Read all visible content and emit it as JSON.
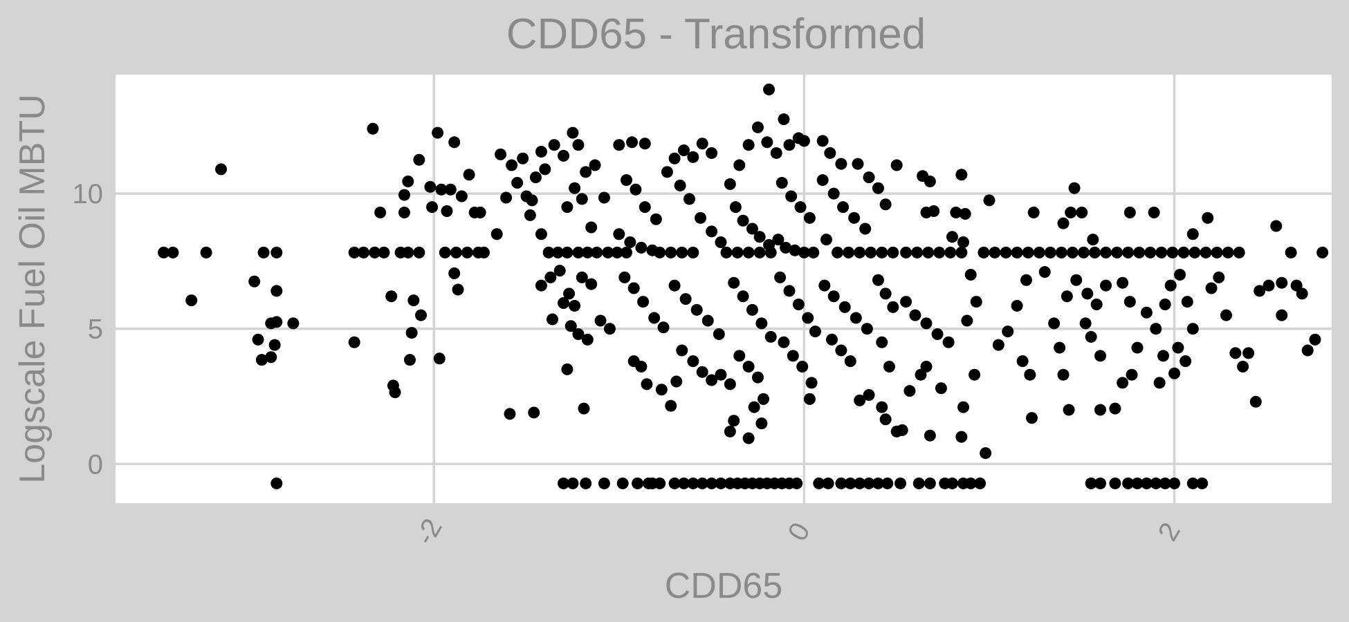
{
  "chart_data": {
    "type": "scatter",
    "title": "CDD65 - Transformed",
    "xlabel": "CDD65",
    "ylabel": "Logscale Fuel Oil MBTU",
    "xlim": [
      -3.72,
      2.85
    ],
    "ylim": [
      -1.45,
      14.4
    ],
    "xticks": [
      -2,
      0,
      2
    ],
    "xtick_labels": [
      "-2",
      "0",
      "2"
    ],
    "yticks": [
      0,
      5,
      10
    ],
    "ytick_labels": [
      "0",
      "5",
      "10"
    ],
    "grid": true,
    "point_color": "#000000",
    "panel_background": "#ffffff",
    "figure_background": "#d4d4d4",
    "points": [
      [
        -3.46,
        7.82
      ],
      [
        -3.41,
        7.82
      ],
      [
        -3.31,
        6.05
      ],
      [
        -3.23,
        7.82
      ],
      [
        -3.15,
        10.9
      ],
      [
        -2.97,
        6.75
      ],
      [
        -2.95,
        4.6
      ],
      [
        -2.92,
        7.82
      ],
      [
        -2.85,
        7.82
      ],
      [
        -2.93,
        3.85
      ],
      [
        -2.88,
        5.2
      ],
      [
        -2.85,
        5.25
      ],
      [
        -2.86,
        4.4
      ],
      [
        -2.88,
        3.95
      ],
      [
        -2.85,
        6.4
      ],
      [
        -2.76,
        5.2
      ],
      [
        -2.85,
        -0.72
      ],
      [
        -2.43,
        7.82
      ],
      [
        -2.38,
        7.82
      ],
      [
        -2.32,
        7.82
      ],
      [
        -2.27,
        7.82
      ],
      [
        -2.43,
        4.5
      ],
      [
        -2.33,
        12.4
      ],
      [
        -2.29,
        9.3
      ],
      [
        -2.23,
        6.2
      ],
      [
        -2.18,
        7.82
      ],
      [
        -2.14,
        7.82
      ],
      [
        -2.08,
        7.82
      ],
      [
        -2.22,
        2.9
      ],
      [
        -2.21,
        2.65
      ],
      [
        -2.16,
        9.95
      ],
      [
        -2.14,
        10.45
      ],
      [
        -2.11,
        6.05
      ],
      [
        -2.12,
        4.85
      ],
      [
        -2.13,
        3.85
      ],
      [
        -2.16,
        9.3
      ],
      [
        -2.08,
        11.25
      ],
      [
        -2.02,
        10.25
      ],
      [
        -2.01,
        9.5
      ],
      [
        -1.98,
        12.25
      ],
      [
        -1.96,
        10.15
      ],
      [
        -1.93,
        9.35
      ],
      [
        -1.91,
        10.15
      ],
      [
        -1.89,
        11.9
      ],
      [
        -1.94,
        7.82
      ],
      [
        -1.88,
        7.82
      ],
      [
        -1.82,
        7.82
      ],
      [
        -1.76,
        7.82
      ],
      [
        -1.85,
        9.9
      ],
      [
        -1.89,
        7.05
      ],
      [
        -1.87,
        6.45
      ],
      [
        -1.97,
        3.9
      ],
      [
        -2.07,
        5.5
      ],
      [
        -1.81,
        10.7
      ],
      [
        -1.78,
        9.3
      ],
      [
        -1.75,
        9.3
      ],
      [
        -1.73,
        7.82
      ],
      [
        -1.66,
        8.5
      ],
      [
        -1.61,
        9.85
      ],
      [
        -1.64,
        11.45
      ],
      [
        -1.58,
        11.05
      ],
      [
        -1.55,
        10.4
      ],
      [
        -1.5,
        9.9
      ],
      [
        -1.48,
        9.2
      ],
      [
        -1.52,
        11.3
      ],
      [
        -1.45,
        10.6
      ],
      [
        -1.42,
        11.55
      ],
      [
        -1.47,
        9.75
      ],
      [
        -1.4,
        10.9
      ],
      [
        -1.35,
        11.8
      ],
      [
        -1.3,
        11.4
      ],
      [
        -1.25,
        12.25
      ],
      [
        -1.22,
        11.8
      ],
      [
        -1.18,
        10.8
      ],
      [
        -1.13,
        11.05
      ],
      [
        -1.28,
        9.5
      ],
      [
        -1.24,
        10.2
      ],
      [
        -1.2,
        9.8
      ],
      [
        -1.15,
        8.75
      ],
      [
        -1.08,
        9.85
      ],
      [
        -1.42,
        8.5
      ],
      [
        -1.38,
        7.82
      ],
      [
        -1.33,
        7.82
      ],
      [
        -1.28,
        7.82
      ],
      [
        -1.22,
        7.82
      ],
      [
        -1.17,
        7.82
      ],
      [
        -1.12,
        7.82
      ],
      [
        -1.06,
        7.82
      ],
      [
        -1.01,
        7.82
      ],
      [
        -0.96,
        7.82
      ],
      [
        -1.42,
        6.6
      ],
      [
        -1.37,
        6.9
      ],
      [
        -1.32,
        7.15
      ],
      [
        -1.27,
        6.3
      ],
      [
        -1.24,
        5.85
      ],
      [
        -1.2,
        6.9
      ],
      [
        -1.15,
        6.65
      ],
      [
        -1.1,
        5.3
      ],
      [
        -1.05,
        5.0
      ],
      [
        -1.36,
        5.35
      ],
      [
        -1.3,
        5.95
      ],
      [
        -1.26,
        5.1
      ],
      [
        -1.22,
        4.8
      ],
      [
        -1.17,
        4.6
      ],
      [
        -1.28,
        3.5
      ],
      [
        -1.19,
        2.05
      ],
      [
        -1.59,
        1.85
      ],
      [
        -1.46,
        1.9
      ],
      [
        -1.0,
        11.8
      ],
      [
        -0.93,
        11.9
      ],
      [
        -0.86,
        11.85
      ],
      [
        -0.96,
        10.5
      ],
      [
        -0.91,
        10.15
      ],
      [
        -0.86,
        9.5
      ],
      [
        -0.8,
        9.05
      ],
      [
        -1.0,
        8.5
      ],
      [
        -0.94,
        8.2
      ],
      [
        -0.88,
        8.0
      ],
      [
        -0.82,
        7.9
      ],
      [
        -0.78,
        7.82
      ],
      [
        -0.72,
        7.82
      ],
      [
        -0.66,
        7.82
      ],
      [
        -0.6,
        7.82
      ],
      [
        -0.97,
        6.9
      ],
      [
        -0.92,
        6.5
      ],
      [
        -0.87,
        6.0
      ],
      [
        -0.81,
        5.4
      ],
      [
        -0.76,
        5.05
      ],
      [
        -0.92,
        3.8
      ],
      [
        -0.88,
        3.6
      ],
      [
        -0.85,
        2.95
      ],
      [
        -0.77,
        2.75
      ],
      [
        -0.72,
        2.15
      ],
      [
        -0.69,
        3.05
      ],
      [
        -0.74,
        10.8
      ],
      [
        -0.7,
        11.3
      ],
      [
        -0.65,
        11.6
      ],
      [
        -0.6,
        11.35
      ],
      [
        -0.55,
        11.85
      ],
      [
        -0.5,
        11.5
      ],
      [
        -0.67,
        10.3
      ],
      [
        -0.62,
        9.8
      ],
      [
        -0.56,
        9.1
      ],
      [
        -0.5,
        8.6
      ],
      [
        -0.45,
        8.2
      ],
      [
        -0.7,
        6.6
      ],
      [
        -0.64,
        6.1
      ],
      [
        -0.58,
        5.7
      ],
      [
        -0.52,
        5.3
      ],
      [
        -0.46,
        4.8
      ],
      [
        -0.66,
        4.2
      ],
      [
        -0.6,
        3.8
      ],
      [
        -0.55,
        3.4
      ],
      [
        -0.5,
        3.1
      ],
      [
        -0.45,
        3.3
      ],
      [
        -0.4,
        10.35
      ],
      [
        -0.35,
        11.05
      ],
      [
        -0.3,
        11.8
      ],
      [
        -0.25,
        12.45
      ],
      [
        -0.2,
        11.9
      ],
      [
        -0.37,
        9.5
      ],
      [
        -0.33,
        9.0
      ],
      [
        -0.28,
        8.7
      ],
      [
        -0.24,
        8.4
      ],
      [
        -0.19,
        8.1
      ],
      [
        -0.42,
        7.82
      ],
      [
        -0.36,
        7.82
      ],
      [
        -0.3,
        7.82
      ],
      [
        -0.24,
        7.82
      ],
      [
        -0.18,
        7.82
      ],
      [
        -0.38,
        6.7
      ],
      [
        -0.33,
        6.2
      ],
      [
        -0.28,
        5.7
      ],
      [
        -0.23,
        5.2
      ],
      [
        -0.18,
        4.7
      ],
      [
        -0.35,
        4.0
      ],
      [
        -0.3,
        3.6
      ],
      [
        -0.25,
        3.2
      ],
      [
        -0.4,
        2.95
      ],
      [
        -0.38,
        1.6
      ],
      [
        -0.4,
        1.2
      ],
      [
        -0.3,
        0.95
      ],
      [
        -0.23,
        1.5
      ],
      [
        -0.27,
        2.1
      ],
      [
        -0.22,
        2.4
      ],
      [
        -0.19,
        13.85
      ],
      [
        -0.11,
        12.75
      ],
      [
        -0.15,
        11.5
      ],
      [
        -0.08,
        11.8
      ],
      [
        -0.03,
        12.05
      ],
      [
        0.0,
        11.95
      ],
      [
        -0.12,
        10.4
      ],
      [
        -0.07,
        9.9
      ],
      [
        -0.02,
        9.5
      ],
      [
        0.03,
        9.1
      ],
      [
        -0.14,
        8.3
      ],
      [
        -0.1,
        8.0
      ],
      [
        -0.05,
        7.9
      ],
      [
        0.0,
        7.82
      ],
      [
        0.05,
        7.82
      ],
      [
        -0.13,
        6.9
      ],
      [
        -0.08,
        6.4
      ],
      [
        -0.03,
        5.9
      ],
      [
        0.02,
        5.4
      ],
      [
        0.06,
        4.9
      ],
      [
        -0.11,
        4.5
      ],
      [
        -0.06,
        4.0
      ],
      [
        -0.01,
        3.6
      ],
      [
        0.04,
        3.0
      ],
      [
        0.03,
        2.4
      ],
      [
        0.1,
        11.95
      ],
      [
        0.14,
        11.5
      ],
      [
        0.2,
        11.1
      ],
      [
        0.1,
        10.5
      ],
      [
        0.16,
        10.0
      ],
      [
        0.21,
        9.5
      ],
      [
        0.27,
        9.1
      ],
      [
        0.33,
        8.7
      ],
      [
        0.12,
        8.3
      ],
      [
        0.18,
        7.82
      ],
      [
        0.24,
        7.82
      ],
      [
        0.3,
        7.82
      ],
      [
        0.36,
        7.82
      ],
      [
        0.42,
        7.82
      ],
      [
        0.48,
        7.82
      ],
      [
        0.11,
        6.6
      ],
      [
        0.16,
        6.2
      ],
      [
        0.22,
        5.8
      ],
      [
        0.28,
        5.4
      ],
      [
        0.34,
        5.0
      ],
      [
        0.15,
        4.6
      ],
      [
        0.2,
        4.2
      ],
      [
        0.25,
        3.8
      ],
      [
        0.3,
        2.35
      ],
      [
        0.35,
        2.55
      ],
      [
        0.29,
        11.1
      ],
      [
        0.35,
        10.6
      ],
      [
        0.4,
        10.2
      ],
      [
        0.44,
        9.6
      ],
      [
        0.5,
        11.05
      ],
      [
        0.4,
        6.8
      ],
      [
        0.44,
        6.3
      ],
      [
        0.48,
        5.8
      ],
      [
        0.42,
        4.5
      ],
      [
        0.46,
        3.6
      ],
      [
        0.42,
        2.1
      ],
      [
        0.44,
        1.65
      ],
      [
        0.5,
        1.2
      ],
      [
        0.53,
        1.25
      ],
      [
        0.55,
        7.82
      ],
      [
        0.61,
        7.82
      ],
      [
        0.67,
        7.82
      ],
      [
        0.73,
        7.82
      ],
      [
        0.79,
        7.82
      ],
      [
        0.85,
        7.82
      ],
      [
        0.55,
        6.0
      ],
      [
        0.6,
        5.5
      ],
      [
        0.66,
        5.2
      ],
      [
        0.72,
        4.8
      ],
      [
        0.78,
        4.5
      ],
      [
        0.57,
        2.7
      ],
      [
        0.63,
        3.3
      ],
      [
        0.66,
        3.6
      ],
      [
        0.68,
        1.05
      ],
      [
        0.74,
        2.8
      ],
      [
        0.64,
        10.65
      ],
      [
        0.68,
        10.45
      ],
      [
        0.66,
        9.3
      ],
      [
        0.7,
        9.35
      ],
      [
        0.85,
        10.7
      ],
      [
        0.82,
        9.3
      ],
      [
        0.87,
        9.25
      ],
      [
        0.8,
        8.4
      ],
      [
        0.86,
        8.2
      ],
      [
        0.9,
        7.0
      ],
      [
        0.93,
        6.0
      ],
      [
        0.88,
        5.3
      ],
      [
        0.92,
        3.3
      ],
      [
        0.86,
        2.1
      ],
      [
        0.85,
        1.0
      ],
      [
        0.98,
        0.4
      ],
      [
        1.0,
        9.75
      ],
      [
        0.97,
        7.82
      ],
      [
        1.03,
        7.82
      ],
      [
        1.09,
        7.82
      ],
      [
        1.15,
        7.82
      ],
      [
        1.21,
        7.82
      ],
      [
        1.27,
        7.82
      ],
      [
        1.05,
        4.4
      ],
      [
        1.1,
        4.9
      ],
      [
        1.15,
        5.85
      ],
      [
        1.2,
        6.8
      ],
      [
        1.18,
        3.8
      ],
      [
        1.22,
        3.3
      ],
      [
        1.23,
        1.7
      ],
      [
        1.24,
        9.3
      ],
      [
        1.3,
        7.1
      ],
      [
        1.35,
        5.2
      ],
      [
        1.38,
        4.3
      ],
      [
        1.33,
        7.82
      ],
      [
        1.39,
        7.82
      ],
      [
        1.45,
        7.82
      ],
      [
        1.51,
        7.82
      ],
      [
        1.57,
        7.82
      ],
      [
        1.63,
        7.82
      ],
      [
        1.4,
        8.9
      ],
      [
        1.44,
        9.3
      ],
      [
        1.5,
        9.3
      ],
      [
        1.46,
        10.2
      ],
      [
        1.42,
        6.2
      ],
      [
        1.47,
        6.8
      ],
      [
        1.52,
        5.2
      ],
      [
        1.55,
        4.7
      ],
      [
        1.6,
        4.0
      ],
      [
        1.4,
        3.3
      ],
      [
        1.43,
        2.0
      ],
      [
        1.53,
        6.3
      ],
      [
        1.58,
        5.9
      ],
      [
        1.63,
        6.6
      ],
      [
        1.56,
        8.3
      ],
      [
        1.6,
        2.0
      ],
      [
        1.68,
        2.05
      ],
      [
        1.72,
        6.7
      ],
      [
        1.76,
        6.0
      ],
      [
        1.8,
        4.3
      ],
      [
        1.76,
        9.3
      ],
      [
        1.89,
        9.3
      ],
      [
        1.69,
        7.82
      ],
      [
        1.75,
        7.82
      ],
      [
        1.81,
        7.82
      ],
      [
        1.87,
        7.82
      ],
      [
        1.93,
        7.82
      ],
      [
        1.99,
        7.82
      ],
      [
        1.72,
        3.0
      ],
      [
        1.77,
        3.3
      ],
      [
        1.85,
        5.6
      ],
      [
        1.9,
        5.0
      ],
      [
        1.94,
        4.0
      ],
      [
        1.92,
        3.0
      ],
      [
        1.95,
        5.9
      ],
      [
        1.98,
        6.6
      ],
      [
        2.03,
        7.0
      ],
      [
        2.07,
        6.0
      ],
      [
        2.1,
        5.0
      ],
      [
        2.02,
        4.3
      ],
      [
        2.0,
        3.35
      ],
      [
        2.06,
        3.8
      ],
      [
        2.1,
        8.5
      ],
      [
        2.18,
        9.1
      ],
      [
        2.05,
        7.82
      ],
      [
        2.11,
        7.82
      ],
      [
        2.17,
        7.82
      ],
      [
        2.23,
        7.82
      ],
      [
        2.29,
        7.82
      ],
      [
        2.35,
        7.82
      ],
      [
        2.2,
        6.5
      ],
      [
        2.24,
        6.9
      ],
      [
        2.28,
        5.5
      ],
      [
        2.33,
        4.1
      ],
      [
        2.37,
        3.6
      ],
      [
        2.4,
        4.1
      ],
      [
        2.44,
        2.3
      ],
      [
        2.46,
        6.4
      ],
      [
        2.51,
        6.6
      ],
      [
        2.58,
        5.5
      ],
      [
        2.58,
        6.7
      ],
      [
        2.63,
        7.82
      ],
      [
        2.66,
        6.6
      ],
      [
        2.69,
        6.3
      ],
      [
        2.72,
        4.2
      ],
      [
        2.76,
        4.6
      ],
      [
        2.8,
        7.82
      ],
      [
        2.55,
        8.8
      ],
      [
        -1.3,
        -0.72
      ],
      [
        -1.25,
        -0.72
      ],
      [
        -1.18,
        -0.72
      ],
      [
        -1.08,
        -0.72
      ],
      [
        -0.98,
        -0.72
      ],
      [
        -0.9,
        -0.72
      ],
      [
        -0.82,
        -0.72
      ],
      [
        -0.78,
        -0.72
      ],
      [
        -0.7,
        -0.72
      ],
      [
        -0.65,
        -0.72
      ],
      [
        -0.6,
        -0.72
      ],
      [
        -0.55,
        -0.72
      ],
      [
        -0.5,
        -0.72
      ],
      [
        -0.45,
        -0.72
      ],
      [
        -0.4,
        -0.72
      ],
      [
        -0.36,
        -0.72
      ],
      [
        -0.32,
        -0.72
      ],
      [
        -0.28,
        -0.72
      ],
      [
        -0.24,
        -0.72
      ],
      [
        -0.2,
        -0.72
      ],
      [
        -0.16,
        -0.72
      ],
      [
        -0.12,
        -0.72
      ],
      [
        -0.08,
        -0.72
      ],
      [
        -0.04,
        -0.72
      ],
      [
        0.08,
        -0.72
      ],
      [
        0.13,
        -0.72
      ],
      [
        0.2,
        -0.72
      ],
      [
        0.25,
        -0.72
      ],
      [
        0.3,
        -0.72
      ],
      [
        0.35,
        -0.72
      ],
      [
        0.4,
        -0.72
      ],
      [
        0.45,
        -0.72
      ],
      [
        0.52,
        -0.72
      ],
      [
        0.62,
        -0.72
      ],
      [
        0.68,
        -0.72
      ],
      [
        0.76,
        -0.72
      ],
      [
        0.8,
        -0.72
      ],
      [
        0.86,
        -0.72
      ],
      [
        0.9,
        -0.72
      ],
      [
        0.95,
        -0.72
      ],
      [
        1.55,
        -0.72
      ],
      [
        1.6,
        -0.72
      ],
      [
        1.68,
        -0.72
      ],
      [
        1.75,
        -0.72
      ],
      [
        1.8,
        -0.72
      ],
      [
        1.85,
        -0.72
      ],
      [
        1.9,
        -0.72
      ],
      [
        2.0,
        -0.72
      ],
      [
        2.1,
        -0.72
      ],
      [
        2.15,
        -0.72
      ],
      [
        -0.84,
        -0.72
      ],
      [
        1.95,
        -0.72
      ]
    ]
  }
}
